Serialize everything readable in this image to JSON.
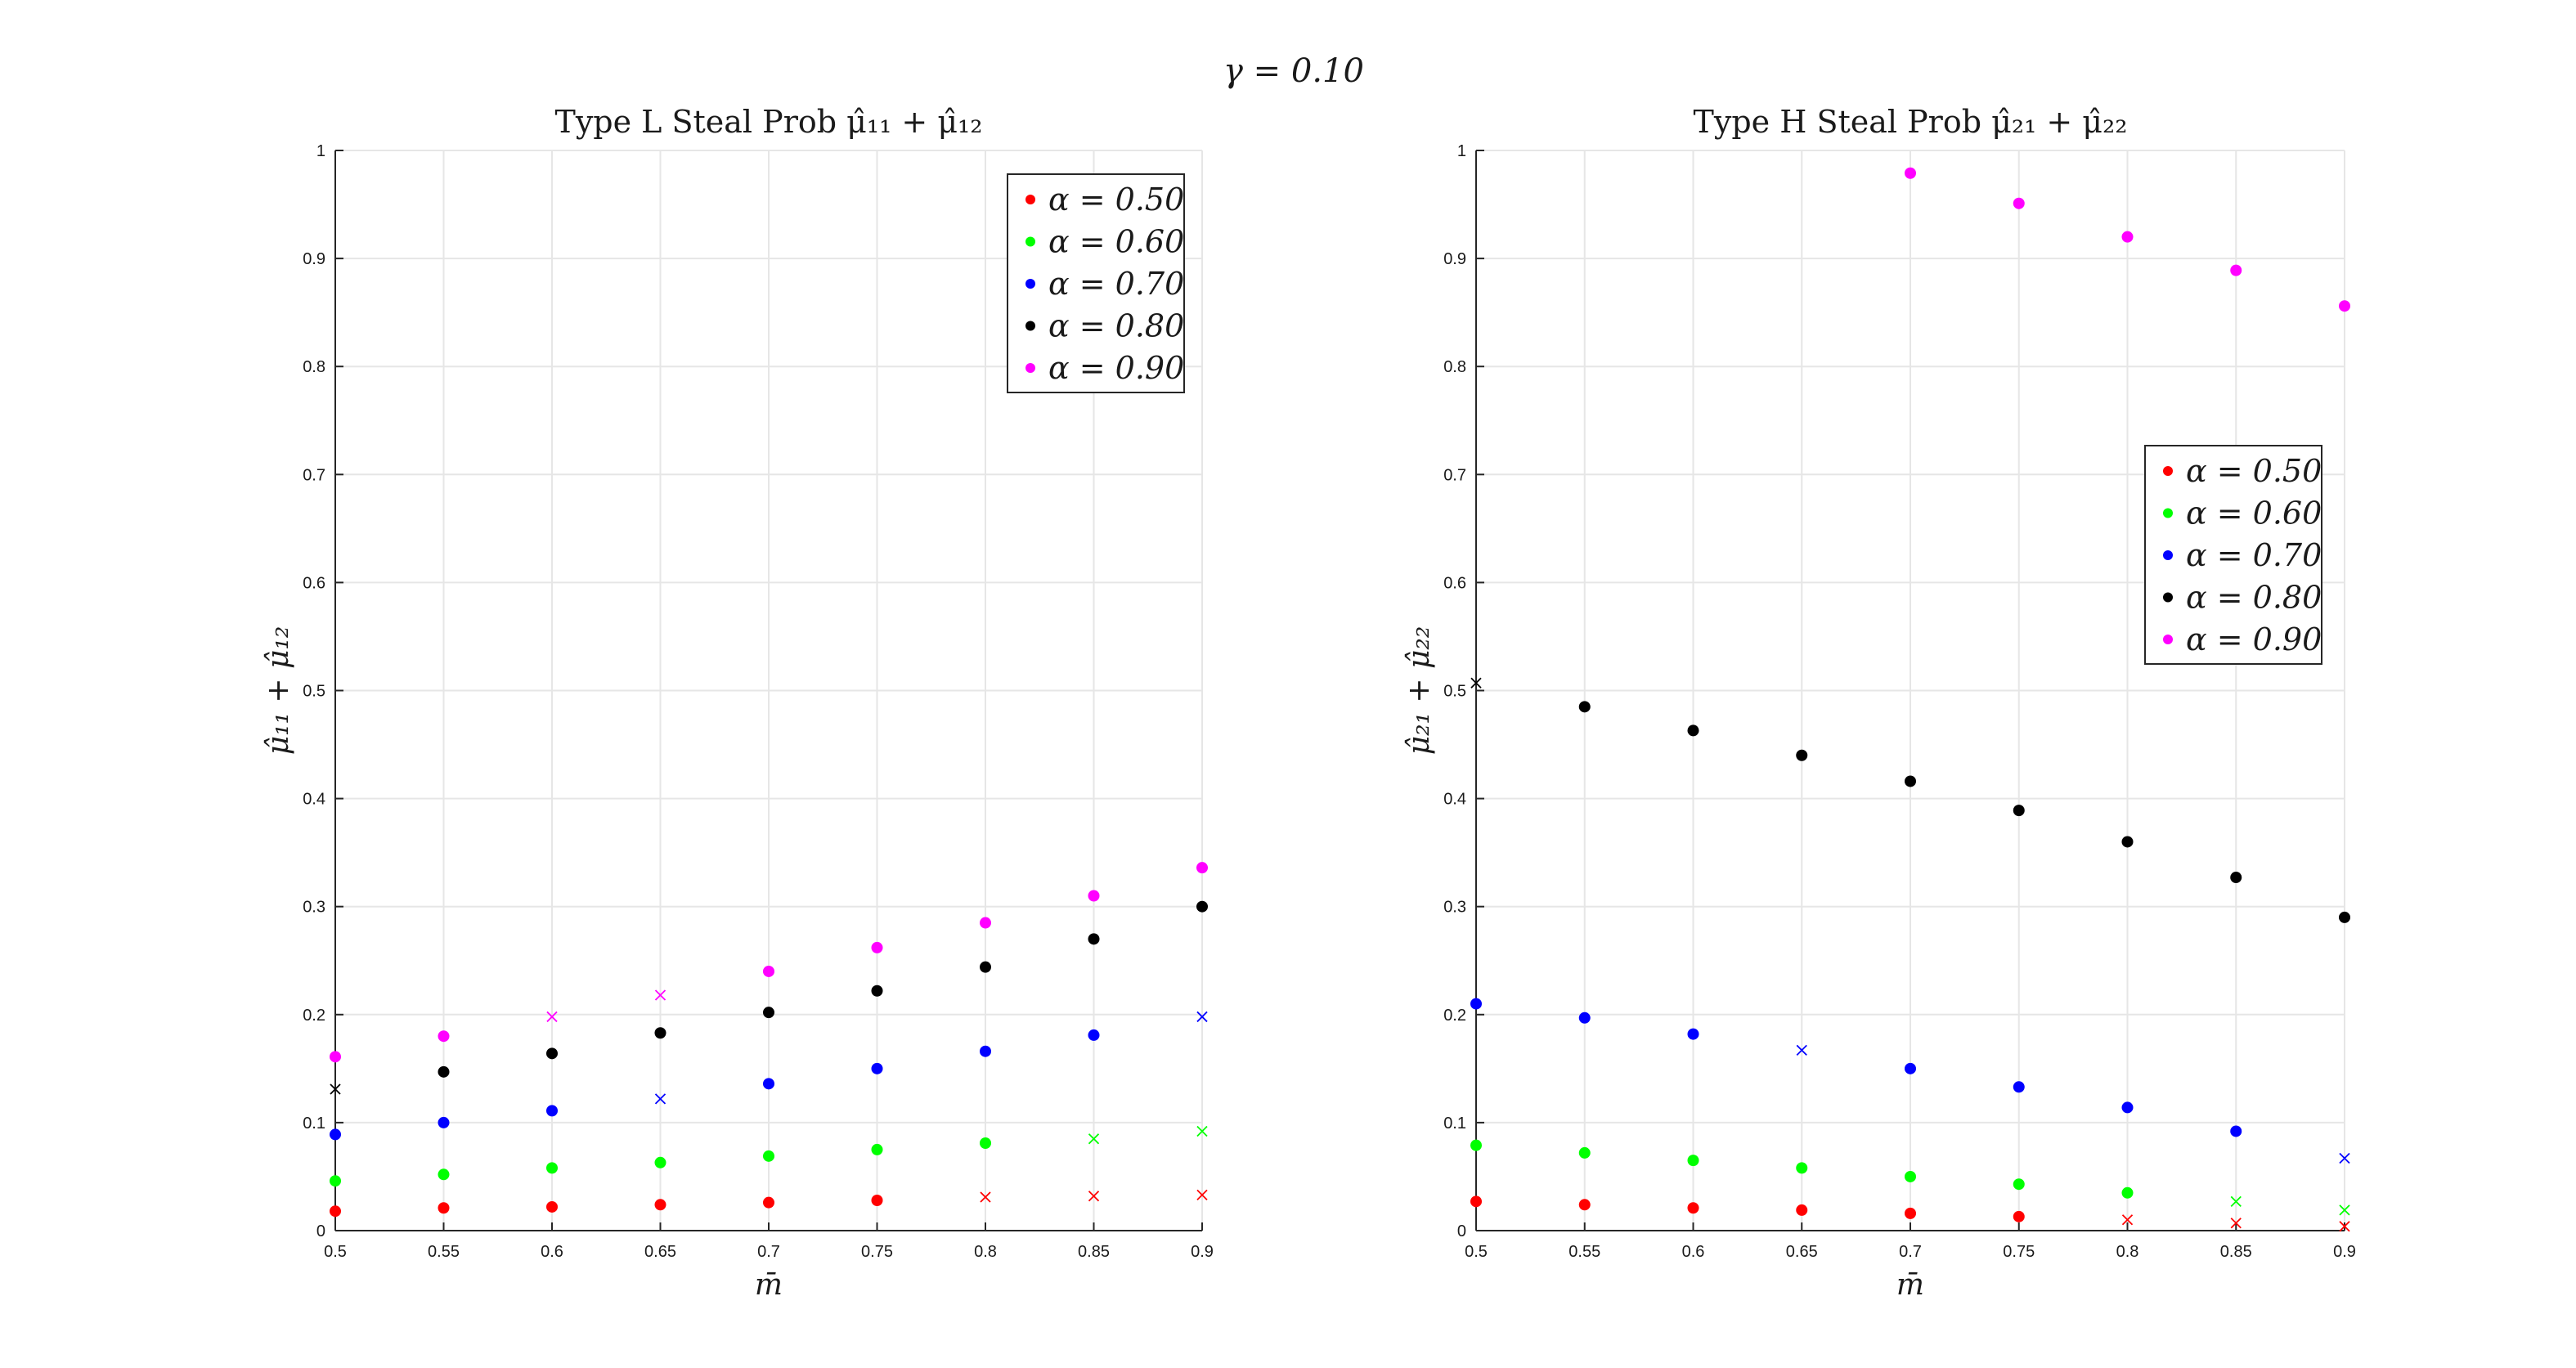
{
  "figure": {
    "suptitle": "γ = 0.10"
  },
  "chart_data": [
    {
      "type": "scatter",
      "title": "Type L Steal Prob μ̂₁₁ + μ̂₁₂",
      "xlabel": "m̄",
      "ylabel": "μ̂₁₁ + μ̂₁₂",
      "xlim": [
        0.5,
        0.9
      ],
      "ylim": [
        0,
        1
      ],
      "xticks": [
        0.5,
        0.55,
        0.6,
        0.65,
        0.7,
        0.75,
        0.8,
        0.85,
        0.9
      ],
      "xtick_labels": [
        "0.5",
        "0.55",
        "0.6",
        "0.65",
        "0.7",
        "0.75",
        "0.8",
        "0.85",
        "0.9"
      ],
      "yticks": [
        0,
        0.1,
        0.2,
        0.3,
        0.4,
        0.5,
        0.6,
        0.7,
        0.8,
        0.9,
        1
      ],
      "ytick_labels": [
        "0",
        "0.1",
        "0.2",
        "0.3",
        "0.4",
        "0.5",
        "0.6",
        "0.7",
        "0.8",
        "0.9",
        "1"
      ],
      "grid": true,
      "legend_position": "top-right",
      "x": [
        0.5,
        0.55,
        0.6,
        0.65,
        0.7,
        0.75,
        0.8,
        0.85,
        0.9
      ],
      "series": [
        {
          "name": "α = 0.50",
          "color": "#ff0000",
          "values": [
            0.018,
            0.021,
            0.022,
            0.024,
            0.026,
            0.028,
            0.031,
            0.032,
            0.033
          ],
          "markers": [
            "dot",
            "dot",
            "dot",
            "dot",
            "dot",
            "dot",
            "x",
            "x",
            "x"
          ]
        },
        {
          "name": "α = 0.60",
          "color": "#00ff00",
          "values": [
            0.046,
            0.052,
            0.058,
            0.063,
            0.069,
            0.075,
            0.081,
            0.085,
            0.092
          ],
          "markers": [
            "dot",
            "dot",
            "dot",
            "dot",
            "dot",
            "dot",
            "dot",
            "x",
            "x"
          ]
        },
        {
          "name": "α = 0.70",
          "color": "#0000ff",
          "values": [
            0.089,
            0.1,
            0.111,
            0.122,
            0.136,
            0.15,
            0.166,
            0.181,
            0.198
          ],
          "markers": [
            "dot",
            "dot",
            "dot",
            "x",
            "dot",
            "dot",
            "dot",
            "dot",
            "x"
          ]
        },
        {
          "name": "α = 0.80",
          "color": "#000000",
          "values": [
            0.131,
            0.147,
            0.164,
            0.183,
            0.202,
            0.222,
            0.244,
            0.27,
            0.3
          ],
          "markers": [
            "x",
            "dot",
            "dot",
            "dot",
            "dot",
            "dot",
            "dot",
            "dot",
            "dot"
          ]
        },
        {
          "name": "α = 0.90",
          "color": "#ff00ff",
          "values": [
            0.161,
            0.18,
            0.198,
            0.218,
            0.24,
            0.262,
            0.285,
            0.31,
            0.336
          ],
          "markers": [
            "dot",
            "dot",
            "x",
            "x",
            "dot",
            "dot",
            "dot",
            "dot",
            "dot"
          ]
        }
      ]
    },
    {
      "type": "scatter",
      "title": "Type H Steal Prob μ̂₂₁ + μ̂₂₂",
      "xlabel": "m̄",
      "ylabel": "μ̂₂₁ + μ̂₂₂",
      "xlim": [
        0.5,
        0.9
      ],
      "ylim": [
        0,
        1
      ],
      "xticks": [
        0.5,
        0.55,
        0.6,
        0.65,
        0.7,
        0.75,
        0.8,
        0.85,
        0.9
      ],
      "xtick_labels": [
        "0.5",
        "0.55",
        "0.6",
        "0.65",
        "0.7",
        "0.75",
        "0.8",
        "0.85",
        "0.9"
      ],
      "yticks": [
        0,
        0.1,
        0.2,
        0.3,
        0.4,
        0.5,
        0.6,
        0.7,
        0.8,
        0.9,
        1
      ],
      "ytick_labels": [
        "0",
        "0.1",
        "0.2",
        "0.3",
        "0.4",
        "0.5",
        "0.6",
        "0.7",
        "0.8",
        "0.9",
        "1"
      ],
      "grid": true,
      "legend_position": "right",
      "x": [
        0.5,
        0.55,
        0.6,
        0.65,
        0.7,
        0.75,
        0.8,
        0.85,
        0.9
      ],
      "series": [
        {
          "name": "α = 0.50",
          "color": "#ff0000",
          "values": [
            0.027,
            0.024,
            0.021,
            0.019,
            0.016,
            0.013,
            0.01,
            0.007,
            0.004
          ],
          "markers": [
            "dot",
            "dot",
            "dot",
            "dot",
            "dot",
            "dot",
            "x",
            "x",
            "x"
          ]
        },
        {
          "name": "α = 0.60",
          "color": "#00ff00",
          "values": [
            0.079,
            0.072,
            0.065,
            0.058,
            0.05,
            0.043,
            0.035,
            0.027,
            0.019
          ],
          "markers": [
            "dot",
            "dot",
            "dot",
            "dot",
            "dot",
            "dot",
            "dot",
            "x",
            "x"
          ]
        },
        {
          "name": "α = 0.70",
          "color": "#0000ff",
          "values": [
            0.21,
            0.197,
            0.182,
            0.167,
            0.15,
            0.133,
            0.114,
            0.092,
            0.067
          ],
          "markers": [
            "dot",
            "dot",
            "dot",
            "x",
            "dot",
            "dot",
            "dot",
            "dot",
            "x"
          ]
        },
        {
          "name": "α = 0.80",
          "color": "#000000",
          "values": [
            0.507,
            0.485,
            0.463,
            0.44,
            0.416,
            0.389,
            0.36,
            0.327,
            0.29
          ],
          "markers": [
            "x",
            "dot",
            "dot",
            "dot",
            "dot",
            "dot",
            "dot",
            "dot",
            "dot"
          ]
        },
        {
          "name": "α = 0.90",
          "color": "#ff00ff",
          "x": [
            0.7,
            0.75,
            0.8,
            0.85,
            0.9
          ],
          "values": [
            0.979,
            0.951,
            0.92,
            0.889,
            0.856
          ],
          "markers": [
            "dot",
            "dot",
            "dot",
            "dot",
            "dot"
          ]
        }
      ]
    }
  ]
}
